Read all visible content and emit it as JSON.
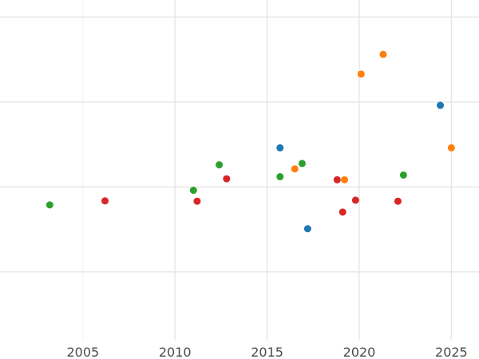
{
  "chart_data": {
    "type": "scatter",
    "title": "",
    "xlabel": "",
    "ylabel": "",
    "xlim": [
      2000.5,
      2026.5
    ],
    "ylim": [
      0,
      100
    ],
    "x_ticks": [
      2005,
      2010,
      2015,
      2020,
      2025
    ],
    "x_tick_labels": [
      "2005",
      "2010",
      "2015",
      "2020",
      "2025"
    ],
    "y_gridlines": [
      20,
      45,
      70,
      95
    ],
    "x_minor_gridlines": [
      2005
    ],
    "grid": true,
    "legend": "none",
    "series": [
      {
        "color": "#1f77b4",
        "points": [
          {
            "x": 2015.7,
            "y": 56.5
          },
          {
            "x": 2017.2,
            "y": 32.7
          },
          {
            "x": 2024.4,
            "y": 69.0
          }
        ]
      },
      {
        "color": "#ff7f0e",
        "points": [
          {
            "x": 2016.5,
            "y": 50.3
          },
          {
            "x": 2019.2,
            "y": 47.1
          },
          {
            "x": 2020.1,
            "y": 78.2
          },
          {
            "x": 2021.3,
            "y": 84.0
          },
          {
            "x": 2025.0,
            "y": 56.5
          }
        ]
      },
      {
        "color": "#2ca02c",
        "points": [
          {
            "x": 2003.2,
            "y": 39.7
          },
          {
            "x": 2011.0,
            "y": 44.0
          },
          {
            "x": 2012.4,
            "y": 51.5
          },
          {
            "x": 2015.7,
            "y": 48.0
          },
          {
            "x": 2016.9,
            "y": 51.9
          },
          {
            "x": 2022.4,
            "y": 48.5
          }
        ]
      },
      {
        "color": "#d62728",
        "points": [
          {
            "x": 2006.2,
            "y": 40.9
          },
          {
            "x": 2011.2,
            "y": 40.8
          },
          {
            "x": 2012.8,
            "y": 47.4
          },
          {
            "x": 2018.8,
            "y": 47.1
          },
          {
            "x": 2019.1,
            "y": 37.6
          },
          {
            "x": 2019.8,
            "y": 41.1
          },
          {
            "x": 2022.1,
            "y": 40.8
          }
        ]
      }
    ]
  }
}
